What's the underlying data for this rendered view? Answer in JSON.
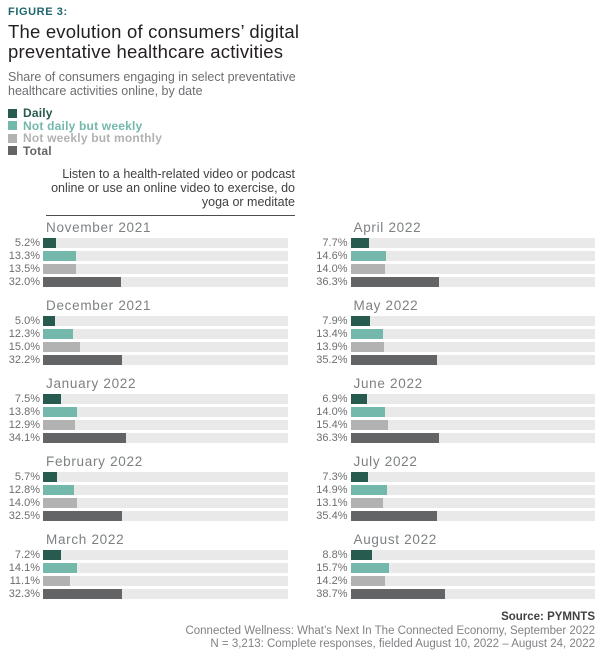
{
  "header": {
    "figure_label": "FIGURE 3:",
    "title": "The evolution of consumers’ digital preventative healthcare activities",
    "subtitle": "Share of consumers engaging in select preventative healthcare activities online, by date"
  },
  "legend": {
    "items": [
      {
        "label": "Daily",
        "color": "#275b4f",
        "icon": "legend-swatch-daily"
      },
      {
        "label": "Not daily but weekly",
        "color": "#74b8ac",
        "icon": "legend-swatch-weekly"
      },
      {
        "label": "Not weekly but monthly",
        "color": "#b2b2b2",
        "icon": "legend-swatch-monthly"
      },
      {
        "label": "Total",
        "color": "#636466",
        "icon": "legend-swatch-total"
      }
    ]
  },
  "question": {
    "text": "Listen to a health-related video or podcast online or use an online video to exercise, do yoga or meditate"
  },
  "chart_data": {
    "type": "bar",
    "orientation": "horizontal",
    "title": "Share of consumers engaging in select preventative healthcare activities online, by date",
    "unit": "%",
    "xlim": [
      0,
      100
    ],
    "value_label_format": "0.0%",
    "series_labels": [
      "Daily",
      "Not daily but weekly",
      "Not weekly but monthly",
      "Total"
    ],
    "series_colors": [
      "#275b4f",
      "#74b8ac",
      "#b2b2b2",
      "#636466"
    ],
    "track_color": "#e9e9e9",
    "panels": [
      {
        "month": "November 2021",
        "values": [
          5.2,
          13.3,
          13.5,
          32.0
        ]
      },
      {
        "month": "December 2021",
        "values": [
          5.0,
          12.3,
          15.0,
          32.2
        ]
      },
      {
        "month": "January 2022",
        "values": [
          7.5,
          13.8,
          12.9,
          34.1
        ]
      },
      {
        "month": "February 2022",
        "values": [
          5.7,
          12.8,
          14.0,
          32.5
        ]
      },
      {
        "month": "March 2022",
        "values": [
          7.2,
          14.1,
          11.1,
          32.3
        ]
      },
      {
        "month": "April 2022",
        "values": [
          7.7,
          14.6,
          14.0,
          36.3
        ]
      },
      {
        "month": "May 2022",
        "values": [
          7.9,
          13.4,
          13.9,
          35.2
        ]
      },
      {
        "month": "June 2022",
        "values": [
          6.9,
          14.0,
          15.4,
          36.3
        ]
      },
      {
        "month": "July 2022",
        "values": [
          7.3,
          14.9,
          13.1,
          35.4
        ]
      },
      {
        "month": "August 2022",
        "values": [
          8.8,
          15.7,
          14.2,
          38.7
        ]
      }
    ]
  },
  "footer": {
    "source_label": "Source: PYMNTS",
    "line2": "Connected Wellness: What’s Next In The Connected Economy, September 2022",
    "line3": "N = 3,213: Complete responses, fielded August 10, 2022 – August 24, 2022"
  }
}
